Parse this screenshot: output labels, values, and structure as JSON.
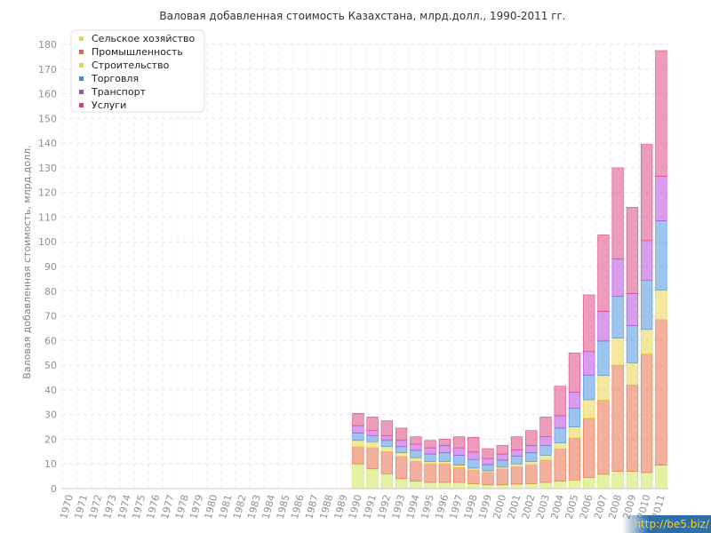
{
  "chart_data": {
    "type": "bar",
    "stacked": true,
    "title": "Валовая добавленная стоимость Казахстана, млрд.долл., 1990-2011 гг.",
    "ylabel": "Валовая добавленная стоимость, млрд.долл.",
    "xlabel": "",
    "ylim": [
      0,
      180
    ],
    "yticks": [
      0,
      10,
      20,
      30,
      40,
      50,
      60,
      70,
      80,
      90,
      100,
      110,
      120,
      130,
      140,
      150,
      160,
      170,
      180
    ],
    "grid": true,
    "legend_position": "top-left",
    "categories": [
      "1970",
      "1971",
      "1972",
      "1973",
      "1974",
      "1975",
      "1976",
      "1977",
      "1978",
      "1979",
      "1980",
      "1981",
      "1982",
      "1983",
      "1984",
      "1985",
      "1986",
      "1987",
      "1988",
      "1989",
      "1990",
      "1991",
      "1992",
      "1993",
      "1994",
      "1995",
      "1996",
      "1997",
      "1998",
      "1999",
      "2000",
      "2001",
      "2002",
      "2003",
      "2004",
      "2005",
      "2006",
      "2007",
      "2008",
      "2009",
      "2010",
      "2011"
    ],
    "series": [
      {
        "name": "Сельское хозяйство",
        "color": "#c8e64b",
        "values": [
          null,
          null,
          null,
          null,
          null,
          null,
          null,
          null,
          null,
          null,
          null,
          null,
          null,
          null,
          null,
          null,
          null,
          null,
          null,
          null,
          10,
          8,
          6,
          4,
          3,
          2.5,
          2.5,
          2.5,
          2,
          1.5,
          1.5,
          1.8,
          2,
          2.5,
          3,
          3.5,
          4.5,
          5.8,
          7,
          7,
          6.5,
          9.5
        ]
      },
      {
        "name": "Промышленность",
        "color": "#e8643c",
        "values": [
          null,
          null,
          null,
          null,
          null,
          null,
          null,
          null,
          null,
          null,
          null,
          null,
          null,
          null,
          null,
          null,
          null,
          null,
          null,
          null,
          7,
          8.5,
          9,
          9,
          8,
          7.5,
          7.5,
          6,
          5.5,
          5,
          6.5,
          7,
          7.5,
          9,
          13,
          17,
          24,
          30,
          43,
          35,
          48,
          59
        ]
      },
      {
        "name": "Строительство",
        "color": "#e8d23c",
        "values": [
          null,
          null,
          null,
          null,
          null,
          null,
          null,
          null,
          null,
          null,
          null,
          null,
          null,
          null,
          null,
          null,
          null,
          null,
          null,
          null,
          2.5,
          2.5,
          2,
          1.5,
          1.5,
          1,
          1,
          1,
          0.8,
          0.7,
          0.7,
          1.2,
          1.5,
          2,
          2.5,
          4.5,
          7.5,
          10,
          11,
          9,
          10,
          12
        ]
      },
      {
        "name": "Торговля",
        "color": "#3c8cdc",
        "values": [
          null,
          null,
          null,
          null,
          null,
          null,
          null,
          null,
          null,
          null,
          null,
          null,
          null,
          null,
          null,
          null,
          null,
          null,
          null,
          null,
          3,
          2.5,
          2.5,
          2.5,
          3,
          3,
          3.5,
          4,
          3.5,
          2.5,
          2.8,
          3.2,
          3.5,
          4,
          6,
          7.5,
          10,
          14,
          17,
          15,
          20,
          28
        ]
      },
      {
        "name": "Транспорт",
        "color": "#b43cdc",
        "values": [
          null,
          null,
          null,
          null,
          null,
          null,
          null,
          null,
          null,
          null,
          null,
          null,
          null,
          null,
          null,
          null,
          null,
          null,
          null,
          null,
          3,
          2,
          2,
          2.5,
          2.5,
          2.5,
          3,
          3,
          3,
          2.5,
          2.5,
          2.5,
          3,
          3.5,
          5,
          6.5,
          9.5,
          12,
          15,
          13,
          16,
          18
        ]
      },
      {
        "name": "Услуги",
        "color": "#dc3c78",
        "values": [
          null,
          null,
          null,
          null,
          null,
          null,
          null,
          null,
          null,
          null,
          null,
          null,
          null,
          null,
          null,
          null,
          null,
          null,
          null,
          null,
          5,
          5.5,
          6,
          5,
          3,
          3,
          2.5,
          4.5,
          6,
          4,
          3.5,
          5.3,
          6,
          8,
          12,
          16,
          23,
          31,
          37,
          35,
          39,
          51
        ]
      }
    ]
  },
  "watermark": "http://be5.biz/"
}
